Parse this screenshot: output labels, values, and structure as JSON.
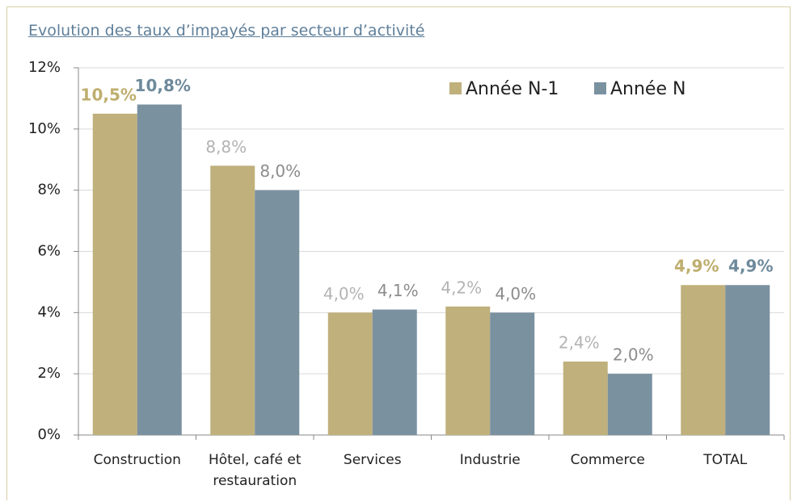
{
  "chart_data": {
    "type": "bar",
    "title": "Evolution des taux d’impayés par secteur d’activité",
    "categories": [
      "Construction",
      "Hôtel, café et restauration",
      "Services",
      "Industrie",
      "Commerce",
      "TOTAL"
    ],
    "series": [
      {
        "name": "Année N-1",
        "color": "#bfb07c",
        "values": [
          10.5,
          8.8,
          4.0,
          4.2,
          2.4,
          4.9
        ],
        "value_labels": [
          "10,5%",
          "8,8%",
          "4,0%",
          "4,2%",
          "2,4%",
          "4,9%"
        ],
        "value_label_colors": [
          "#bfae6e",
          "#b3b3b3",
          "#b3b3b3",
          "#b3b3b3",
          "#b3b3b3",
          "#bfae6e"
        ],
        "value_label_bold": [
          true,
          false,
          false,
          false,
          false,
          true
        ]
      },
      {
        "name": "Année N",
        "color": "#7a91a0",
        "values": [
          10.8,
          8.0,
          4.1,
          4.0,
          2.0,
          4.9
        ],
        "value_labels": [
          "10,8%",
          "8,0%",
          "4,1%",
          "4,0%",
          "2,0%",
          "4,9%"
        ],
        "value_label_colors": [
          "#6e8a9c",
          "#8c8c8c",
          "#8c8c8c",
          "#8c8c8c",
          "#8c8c8c",
          "#6e8a9c"
        ],
        "value_label_bold": [
          true,
          false,
          false,
          false,
          false,
          true
        ]
      }
    ],
    "ylim": [
      0,
      12
    ],
    "yticks": [
      {
        "value": 0,
        "label": "0%"
      },
      {
        "value": 2,
        "label": "2%"
      },
      {
        "value": 4,
        "label": "4%"
      },
      {
        "value": 6,
        "label": "6%"
      },
      {
        "value": 8,
        "label": "8%"
      },
      {
        "value": 10,
        "label": "10%"
      },
      {
        "value": 12,
        "label": "12%"
      }
    ],
    "grid": true,
    "legend": "upper right"
  }
}
